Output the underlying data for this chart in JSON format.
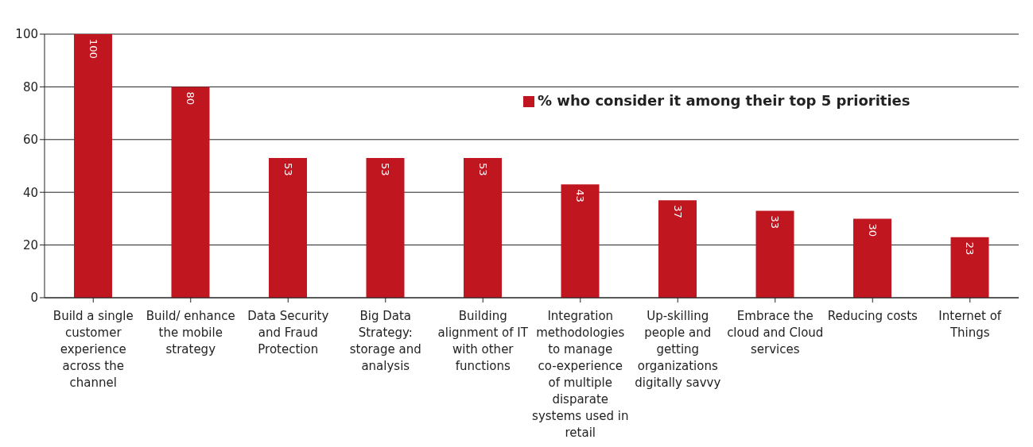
{
  "chart_data": {
    "type": "bar",
    "categories": [
      "Build a single customer experience across the channel",
      "Build/ enhance the mobile strategy",
      "Data Security and Fraud Protection",
      "Big Data Strategy: storage and analysis",
      "Building alignment of IT with other functions",
      "Integration methodologies to manage co-experience of multiple disparate systems used in retail",
      "Up-skilling people and getting organizations digitally savvy",
      "Embrace the cloud and Cloud services",
      "Reducing costs",
      "Internet of Things"
    ],
    "series": [
      {
        "name": "% who consider it among their top 5 priorities",
        "color": "#c0161f",
        "values": [
          100,
          80,
          53,
          53,
          53,
          43,
          37,
          33,
          30,
          23
        ]
      }
    ],
    "ylim": [
      0,
      100
    ],
    "yticks": [
      0,
      20,
      40,
      60,
      80,
      100
    ],
    "grid": "y",
    "legend": "top right",
    "data_labels": true
  }
}
